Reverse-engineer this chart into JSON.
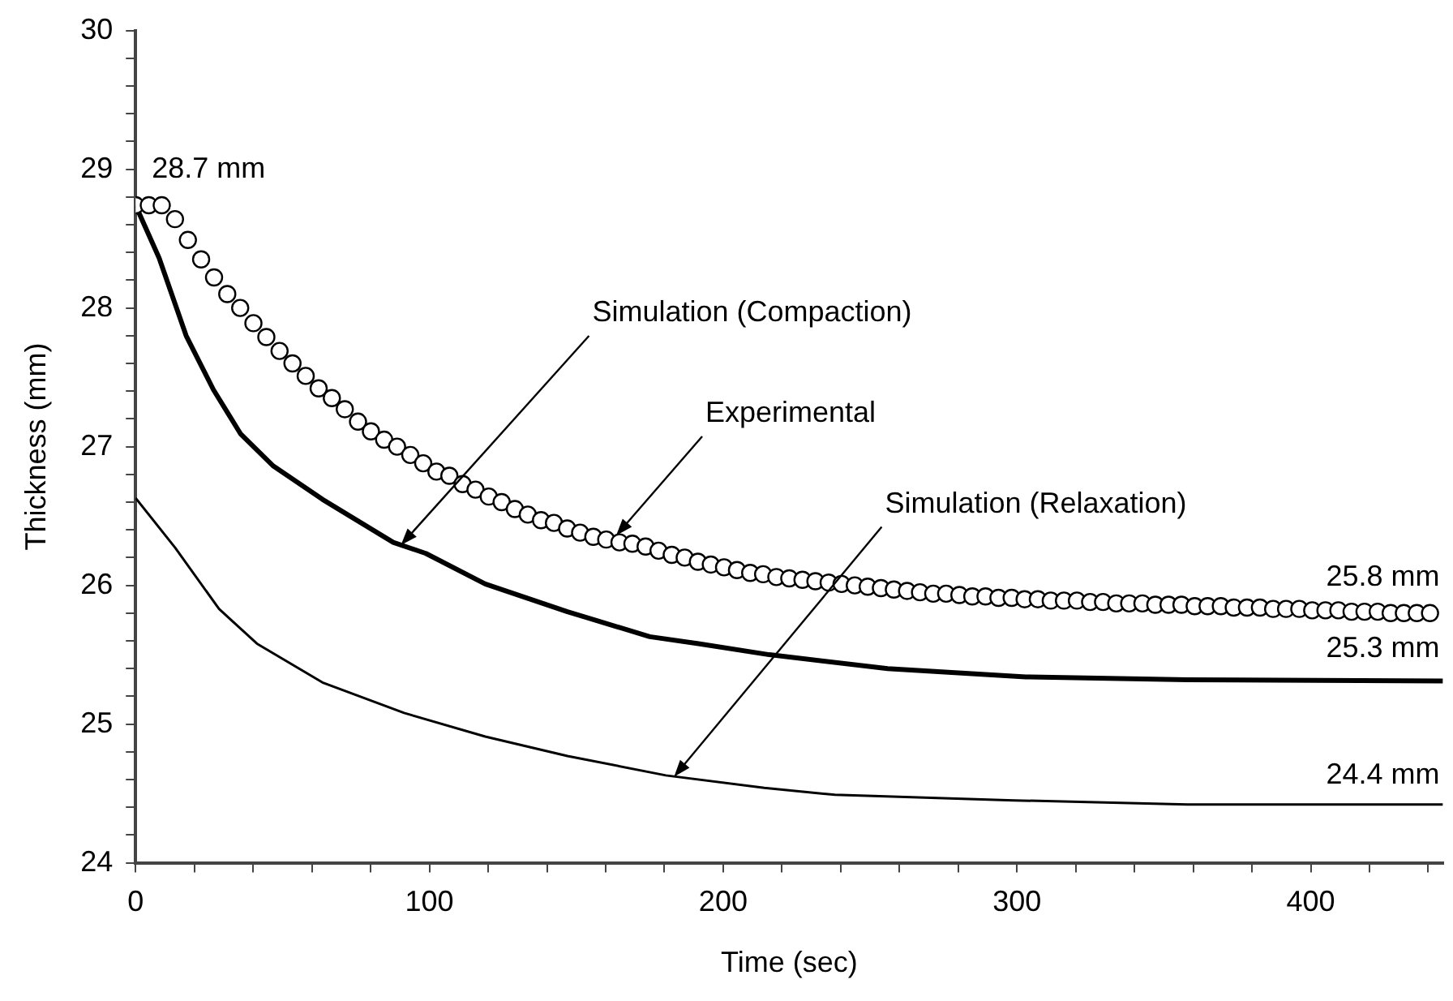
{
  "chart_data": {
    "type": "line",
    "xlabel": "Time (sec)",
    "ylabel": "Thickness (mm)",
    "xlim": [
      0,
      445
    ],
    "ylim": [
      24,
      30
    ],
    "xticks": [
      0,
      {
        "value": 20,
        "label": null
      },
      {
        "value": 40,
        "label": null
      },
      {
        "value": 60,
        "label": null
      },
      {
        "value": 80,
        "label": null
      },
      100,
      {
        "value": 120,
        "label": null
      },
      {
        "value": 140,
        "label": null
      },
      {
        "value": 160,
        "label": null
      },
      {
        "value": 180,
        "label": null
      },
      200,
      {
        "value": 220,
        "label": null
      },
      {
        "value": 240,
        "label": null
      },
      {
        "value": 260,
        "label": null
      },
      {
        "value": 280,
        "label": null
      },
      300,
      {
        "value": 320,
        "label": null
      },
      {
        "value": 340,
        "label": null
      },
      {
        "value": 360,
        "label": null
      },
      {
        "value": 380,
        "label": null
      },
      400,
      {
        "value": 420,
        "label": null
      },
      {
        "value": 440,
        "label": null
      }
    ],
    "yticks": [
      24,
      {
        "value": 24.2,
        "label": null
      },
      {
        "value": 24.4,
        "label": null
      },
      {
        "value": 24.6,
        "label": null
      },
      {
        "value": 24.8,
        "label": null
      },
      25,
      {
        "value": 25.2,
        "label": null
      },
      {
        "value": 25.4,
        "label": null
      },
      {
        "value": 25.6,
        "label": null
      },
      {
        "value": 25.8,
        "label": null
      },
      26,
      {
        "value": 26.2,
        "label": null
      },
      {
        "value": 26.4,
        "label": null
      },
      {
        "value": 26.6,
        "label": null
      },
      {
        "value": 26.8,
        "label": null
      },
      27,
      {
        "value": 27.2,
        "label": null
      },
      {
        "value": 27.4,
        "label": null
      },
      {
        "value": 27.6,
        "label": null
      },
      {
        "value": 27.8,
        "label": null
      },
      28,
      {
        "value": 28.2,
        "label": null
      },
      {
        "value": 28.4,
        "label": null
      },
      {
        "value": 28.6,
        "label": null
      },
      {
        "value": 28.8,
        "label": null
      },
      29,
      {
        "value": 29.2,
        "label": null
      },
      {
        "value": 29.4,
        "label": null
      },
      {
        "value": 29.6,
        "label": null
      },
      {
        "value": 29.8,
        "label": null
      },
      30
    ],
    "grid": false,
    "legend": false,
    "series": [
      {
        "type": "scatter",
        "marker": "circle",
        "color": "#000000",
        "x": [
          0,
          4.5,
          8.9,
          13.4,
          17.8,
          22.3,
          26.7,
          31.2,
          35.6,
          40.1,
          44.5,
          49,
          53.4,
          57.9,
          62.3,
          66.8,
          71.2,
          75.7,
          80.1,
          84.6,
          89,
          93.5,
          97.9,
          102.4,
          106.8,
          111.3,
          115.7,
          120.2,
          124.6,
          129.1,
          133.5,
          138,
          142.4,
          146.9,
          151.3,
          155.8,
          160.2,
          164.7,
          169.1,
          173.6,
          178,
          182.5,
          186.9,
          191.4,
          195.8,
          200.3,
          204.7,
          209.2,
          213.6,
          218.1,
          222.5,
          227,
          231.4,
          235.9,
          240.3,
          244.8,
          249.2,
          253.7,
          258.1,
          262.6,
          267,
          271.5,
          275.9,
          280.4,
          284.8,
          289.3,
          293.7,
          298.2,
          302.6,
          307.1,
          311.5,
          316,
          320.4,
          324.9,
          329.3,
          333.8,
          338.2,
          342.7,
          347.1,
          351.6,
          356,
          360.5,
          364.9,
          369.4,
          373.8,
          378.3,
          382.7,
          387.2,
          391.6,
          396.1,
          400.5,
          405,
          409.4,
          413.9,
          418.3,
          422.8,
          427.2,
          431.7,
          436.1,
          440.6
        ],
        "values": [
          28.74,
          28.74,
          28.74,
          28.64,
          28.49,
          28.35,
          28.22,
          28.1,
          28,
          27.89,
          27.79,
          27.69,
          27.6,
          27.51,
          27.42,
          27.35,
          27.27,
          27.18,
          27.11,
          27.05,
          27,
          26.94,
          26.88,
          26.82,
          26.79,
          26.73,
          26.69,
          26.64,
          26.6,
          26.55,
          26.51,
          26.47,
          26.45,
          26.41,
          26.38,
          26.35,
          26.33,
          26.31,
          26.3,
          26.28,
          26.25,
          26.22,
          26.2,
          26.17,
          26.15,
          26.13,
          26.11,
          26.09,
          26.08,
          26.06,
          26.05,
          26.04,
          26.03,
          26.02,
          26.01,
          26,
          25.99,
          25.98,
          25.97,
          25.96,
          25.95,
          25.94,
          25.94,
          25.93,
          25.92,
          25.92,
          25.91,
          25.91,
          25.9,
          25.9,
          25.89,
          25.89,
          25.89,
          25.88,
          25.88,
          25.87,
          25.87,
          25.87,
          25.86,
          25.86,
          25.86,
          25.85,
          25.85,
          25.85,
          25.84,
          25.84,
          25.84,
          25.83,
          25.83,
          25.83,
          25.82,
          25.82,
          25.82,
          25.81,
          25.81,
          25.81,
          25.8,
          25.8,
          25.8,
          25.8
        ]
      },
      {
        "type": "line",
        "marker": "none",
        "line_style": "solid",
        "color": "#000000",
        "x": [
          0,
          8,
          17.2,
          26.5,
          35.8,
          46.9,
          63.6,
          87.7,
          98.8,
          119,
          147,
          175,
          191.6,
          215.7,
          256,
          303,
          358,
          445
        ],
        "values": [
          28.74,
          28.36,
          27.8,
          27.41,
          27.09,
          26.86,
          26.62,
          26.31,
          26.23,
          26.01,
          25.81,
          25.63,
          25.58,
          25.5,
          25.4,
          25.34,
          25.32,
          25.31
        ]
      },
      {
        "type": "line",
        "marker": "none",
        "line_style": "solid",
        "color": "#000000",
        "x": [
          0,
          13.5,
          28.4,
          41.3,
          63.6,
          91.4,
          119,
          147,
          180.5,
          214,
          238,
          299,
          358,
          445
        ],
        "values": [
          26.63,
          26.27,
          25.83,
          25.58,
          25.3,
          25.08,
          24.91,
          24.77,
          24.63,
          24.54,
          24.49,
          24.45,
          24.42,
          24.42
        ]
      }
    ],
    "annotations": [
      {
        "text": "28.7 mm",
        "x": 0,
        "y": 28.74
      },
      {
        "text": "25.8 mm",
        "x": 440.6,
        "y": 25.8
      },
      {
        "text": "25.3 mm",
        "x": 445,
        "y": 25.31
      },
      {
        "text": "24.4 mm",
        "x": 445,
        "y": 24.42
      },
      {
        "text": "Simulation (Compaction)",
        "x": 90.3,
        "y": 26.29
      },
      {
        "text": "Experimental",
        "x": 163.6,
        "y": 26.36
      },
      {
        "text": "Simulation (Relaxation)",
        "x": 183.3,
        "y": 24.62
      }
    ]
  }
}
